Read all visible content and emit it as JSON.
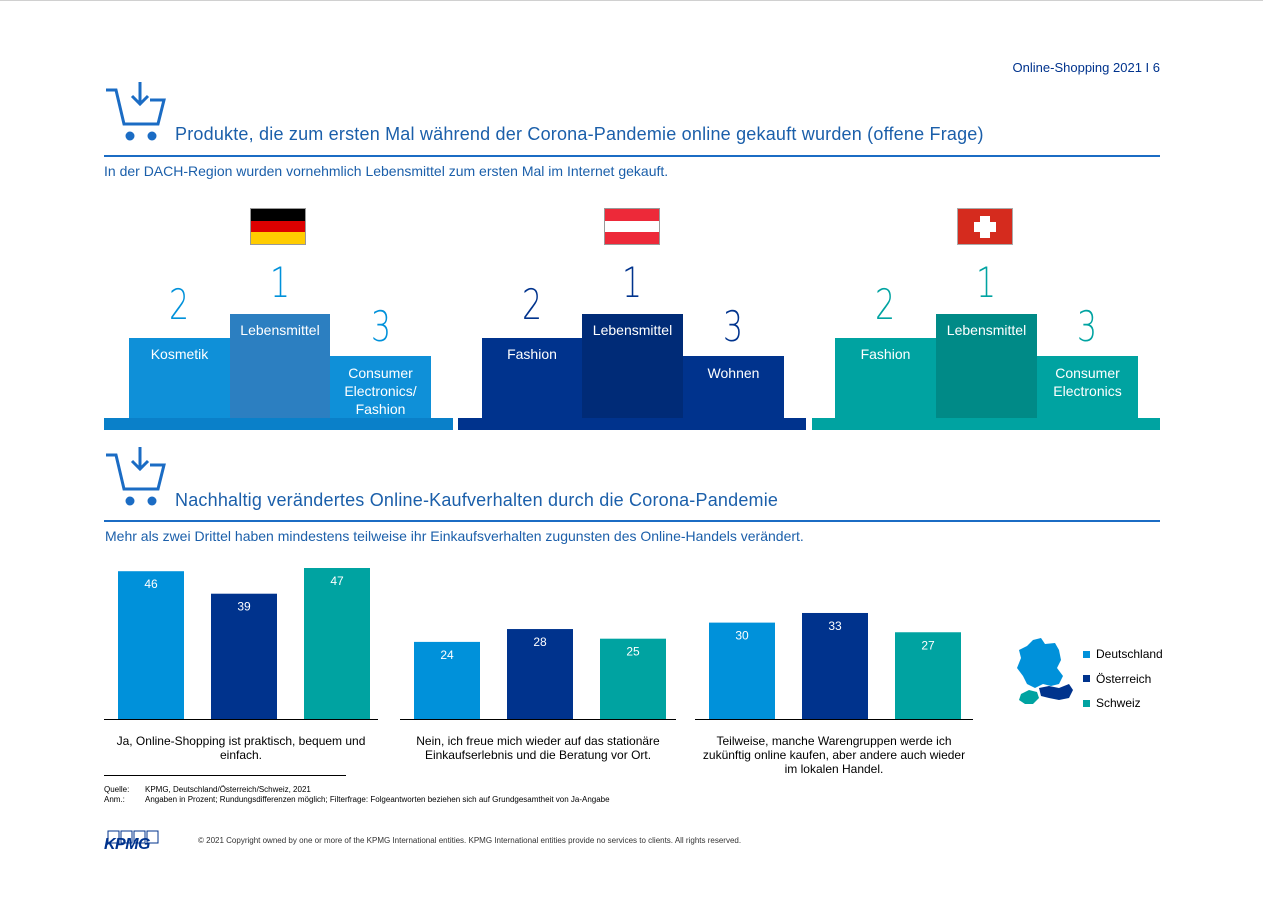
{
  "header": {
    "page_label": "Online-Shopping 2021 I 6"
  },
  "colors": {
    "deutschland": "#0091da",
    "oesterreich": "#00338d",
    "schweiz": "#00a3a1"
  },
  "section1": {
    "title": "Produkte, die zum ersten Mal während der Corona-Pandemie online gekauft wurden (offene Frage)",
    "subtitle": "In der DACH-Region wurden vornehmlich Lebensmittel zum ersten Mal im Internet gekauft.",
    "podiums": [
      {
        "country": "Deutschland",
        "first": "Lebensmittel",
        "second": "Kosmetik",
        "third": "Consumer Electronics/ Fashion",
        "rank1": "1",
        "rank2": "2",
        "rank3": "3"
      },
      {
        "country": "Österreich",
        "first": "Lebensmittel",
        "second": "Fashion",
        "third": "Wohnen",
        "rank1": "1",
        "rank2": "2",
        "rank3": "3"
      },
      {
        "country": "Schweiz",
        "first": "Lebensmittel",
        "second": "Fashion",
        "third": "Consumer Electronics",
        "rank1": "1",
        "rank2": "2",
        "rank3": "3"
      }
    ]
  },
  "section2": {
    "title": "Nachhaltig verändertes Online-Kaufverhalten durch die Corona-Pandemie",
    "subtitle": "Mehr als zwei Drittel haben mindestens teilweise ihr Einkaufsverhalten zugunsten des Online-Handels verändert."
  },
  "chart_data": {
    "type": "bar",
    "categories": [
      "Ja, Online-Shopping ist praktisch, bequem und einfach.",
      "Nein, ich freue mich wieder auf das stationäre Einkaufserlebnis und die Beratung vor Ort.",
      "Teilweise, manche Warengruppen werde ich zukünftig online kaufen, aber andere auch wieder im lokalen Handel."
    ],
    "series": [
      {
        "name": "Deutschland",
        "values": [
          46,
          24,
          30
        ],
        "color": "#0091da"
      },
      {
        "name": "Österreich",
        "values": [
          39,
          28,
          33
        ],
        "color": "#00338d"
      },
      {
        "name": "Schweiz",
        "values": [
          47,
          25,
          27
        ],
        "color": "#00a3a1"
      }
    ],
    "ylim": [
      0,
      47
    ],
    "legend_position": "right",
    "grid": false
  },
  "footer": {
    "source_key": "Quelle:",
    "source_value": "KPMG, Deutschland/Österreich/Schweiz, 2021",
    "note_key": "Anm.:",
    "note_value": "Angaben in Prozent; Rundungsdifferenzen möglich; Filterfrage: Folgeantworten beziehen sich auf Grundgesamtheit von Ja-Angabe",
    "copyright": "© 2021 Copyright owned by one or more of the KPMG International entities. KPMG International entities provide no services to clients. All rights reserved.",
    "logo": "KPMG"
  }
}
